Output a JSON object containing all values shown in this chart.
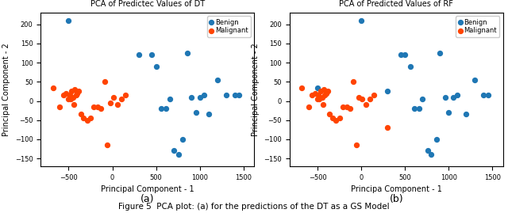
{
  "title_a": "PCA of Predictec Values of DT",
  "title_b": "PCA of Predicted Values of RF",
  "xlabel_a": "Principal Component - 1",
  "xlabel_b": "Principa Component - 1",
  "ylabel": "Principal Component - 2",
  "label_a": "(a)",
  "label_b": "(b)",
  "benign_color": "#1f77b4",
  "malignant_color": "#ff4400",
  "benign_label": "Benign",
  "malignant_label": "Malignant",
  "dot_size": 18,
  "benign_DT_x": [
    -500,
    300,
    450,
    500,
    560,
    610,
    660,
    700,
    760,
    800,
    860,
    900,
    960,
    1000,
    1050,
    1100,
    1200,
    1300,
    1400,
    1450
  ],
  "benign_DT_y": [
    210,
    120,
    120,
    90,
    -20,
    -20,
    5,
    -130,
    -140,
    -100,
    125,
    10,
    -30,
    10,
    15,
    -35,
    55,
    15,
    15,
    15
  ],
  "malignant_DT_x": [
    -680,
    -600,
    -560,
    -530,
    -500,
    -490,
    -480,
    -465,
    -450,
    -440,
    -430,
    -415,
    -400,
    -385,
    -360,
    -330,
    -290,
    -250,
    -210,
    -165,
    -130,
    -90,
    -55,
    -25,
    10,
    55,
    100,
    145
  ],
  "malignant_DT_y": [
    35,
    -15,
    15,
    20,
    5,
    15,
    5,
    25,
    10,
    -10,
    30,
    15,
    20,
    25,
    -35,
    -45,
    -50,
    -45,
    -15,
    -15,
    -20,
    50,
    -115,
    -5,
    10,
    -10,
    5,
    15
  ],
  "benign_RF_x": [
    -500,
    0,
    300,
    450,
    500,
    560,
    610,
    660,
    700,
    760,
    800,
    860,
    900,
    960,
    1000,
    1050,
    1100,
    1200,
    1300,
    1400,
    1450
  ],
  "benign_RF_y": [
    35,
    210,
    25,
    120,
    120,
    90,
    -20,
    -20,
    5,
    -130,
    -140,
    -100,
    125,
    10,
    -30,
    10,
    15,
    -35,
    55,
    15,
    15
  ],
  "malignant_RF_x": [
    -680,
    -600,
    -560,
    -530,
    -500,
    -490,
    -480,
    -465,
    -450,
    -440,
    -430,
    -415,
    -400,
    -385,
    -360,
    -330,
    -290,
    -250,
    -210,
    -165,
    -130,
    -90,
    -55,
    -25,
    10,
    55,
    100,
    145,
    300
  ],
  "malignant_RF_y": [
    35,
    -15,
    15,
    20,
    5,
    15,
    5,
    25,
    10,
    -10,
    30,
    15,
    20,
    25,
    -35,
    -45,
    -50,
    -45,
    -15,
    -15,
    -20,
    50,
    -115,
    10,
    5,
    -10,
    5,
    15,
    -70
  ],
  "ylim": [
    -170,
    230
  ],
  "xlim": [
    -820,
    1620
  ],
  "xticks": [
    -500,
    0,
    500,
    1000,
    1500
  ],
  "yticks": [
    -150,
    -100,
    -50,
    0,
    50,
    100,
    150,
    200
  ],
  "caption": "Figure 5  PCA plot: (a) for the predictions of the DT as a GS Model"
}
